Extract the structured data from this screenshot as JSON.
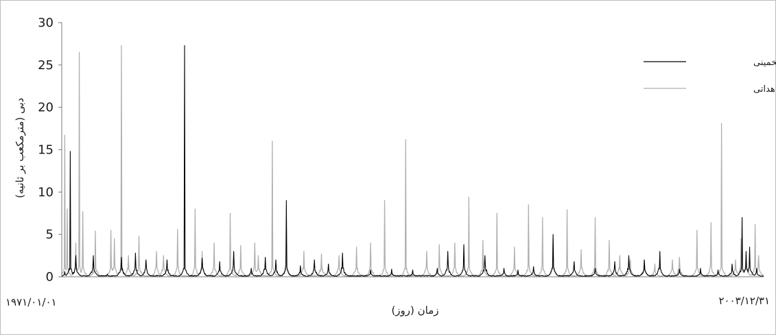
{
  "chart_data": {
    "type": "line",
    "xlabel": "زمان (روز)",
    "ylabel": "دبی (مترمکعب بر ثانیه)",
    "x_start_label": "۱۹۷۱/۰۱/۰۱",
    "x_end_label": "۲۰۰۳/۱۲/۳۱",
    "ylim": [
      0,
      30
    ],
    "yticks": [
      "0",
      "5",
      "10",
      "15",
      "20",
      "25",
      "30"
    ],
    "legend_position": "top-right",
    "series": [
      {
        "name": "دبی تخمینی",
        "color": "#000000",
        "peaks": [
          [
            0.004,
            0.6
          ],
          [
            0.012,
            14.8
          ],
          [
            0.02,
            2.5
          ],
          [
            0.045,
            2.5
          ],
          [
            0.065,
            0.3
          ],
          [
            0.085,
            2.3
          ],
          [
            0.105,
            2.8
          ],
          [
            0.12,
            2.0
          ],
          [
            0.15,
            2.0
          ],
          [
            0.175,
            27.3
          ],
          [
            0.2,
            2.2
          ],
          [
            0.225,
            1.8
          ],
          [
            0.245,
            3.0
          ],
          [
            0.27,
            1.0
          ],
          [
            0.29,
            2.3
          ],
          [
            0.305,
            2.0
          ],
          [
            0.32,
            9.0
          ],
          [
            0.34,
            1.3
          ],
          [
            0.36,
            2.0
          ],
          [
            0.38,
            1.5
          ],
          [
            0.4,
            2.8
          ],
          [
            0.44,
            0.8
          ],
          [
            0.47,
            0.9
          ],
          [
            0.5,
            0.8
          ],
          [
            0.535,
            1.0
          ],
          [
            0.55,
            3.0
          ],
          [
            0.573,
            3.8
          ],
          [
            0.603,
            2.5
          ],
          [
            0.63,
            1.0
          ],
          [
            0.65,
            0.8
          ],
          [
            0.672,
            1.2
          ],
          [
            0.7,
            5.0
          ],
          [
            0.73,
            1.8
          ],
          [
            0.76,
            1.0
          ],
          [
            0.788,
            1.8
          ],
          [
            0.808,
            2.5
          ],
          [
            0.83,
            2.0
          ],
          [
            0.852,
            3.0
          ],
          [
            0.88,
            0.9
          ],
          [
            0.91,
            1.0
          ],
          [
            0.935,
            0.8
          ],
          [
            0.955,
            1.5
          ],
          [
            0.969,
            7.0
          ],
          [
            0.975,
            3.0
          ],
          [
            0.98,
            3.5
          ],
          [
            0.99,
            1.0
          ]
        ]
      },
      {
        "name": "دبی مشاهداتی",
        "color": "#b0b0b0",
        "peaks": [
          [
            0.004,
            16.7
          ],
          [
            0.008,
            8.0
          ],
          [
            0.02,
            4.0
          ],
          [
            0.025,
            26.5
          ],
          [
            0.03,
            7.7
          ],
          [
            0.048,
            5.4
          ],
          [
            0.07,
            5.5
          ],
          [
            0.075,
            4.5
          ],
          [
            0.085,
            27.3
          ],
          [
            0.095,
            2.5
          ],
          [
            0.11,
            4.8
          ],
          [
            0.135,
            3.0
          ],
          [
            0.145,
            2.5
          ],
          [
            0.165,
            5.6
          ],
          [
            0.19,
            8.0
          ],
          [
            0.2,
            3.0
          ],
          [
            0.217,
            4.0
          ],
          [
            0.24,
            7.5
          ],
          [
            0.255,
            3.7
          ],
          [
            0.275,
            4.0
          ],
          [
            0.28,
            2.5
          ],
          [
            0.3,
            16.0
          ],
          [
            0.32,
            4.3
          ],
          [
            0.345,
            3.0
          ],
          [
            0.37,
            2.7
          ],
          [
            0.395,
            2.5
          ],
          [
            0.42,
            3.5
          ],
          [
            0.44,
            4.0
          ],
          [
            0.46,
            9.0
          ],
          [
            0.49,
            16.2
          ],
          [
            0.52,
            3.0
          ],
          [
            0.538,
            3.8
          ],
          [
            0.56,
            4.0
          ],
          [
            0.58,
            9.4
          ],
          [
            0.6,
            4.3
          ],
          [
            0.62,
            7.5
          ],
          [
            0.645,
            3.5
          ],
          [
            0.665,
            8.5
          ],
          [
            0.685,
            7.0
          ],
          [
            0.7,
            4.5
          ],
          [
            0.72,
            7.9
          ],
          [
            0.74,
            3.2
          ],
          [
            0.76,
            7.0
          ],
          [
            0.78,
            4.3
          ],
          [
            0.795,
            2.5
          ],
          [
            0.81,
            2.0
          ],
          [
            0.83,
            2.0
          ],
          [
            0.845,
            1.5
          ],
          [
            0.87,
            2.0
          ],
          [
            0.88,
            2.3
          ],
          [
            0.905,
            5.5
          ],
          [
            0.925,
            6.4
          ],
          [
            0.94,
            18.1
          ],
          [
            0.96,
            2.0
          ],
          [
            0.968,
            4.5
          ],
          [
            0.975,
            2.5
          ],
          [
            0.988,
            6.2
          ],
          [
            0.993,
            2.5
          ]
        ]
      }
    ]
  }
}
